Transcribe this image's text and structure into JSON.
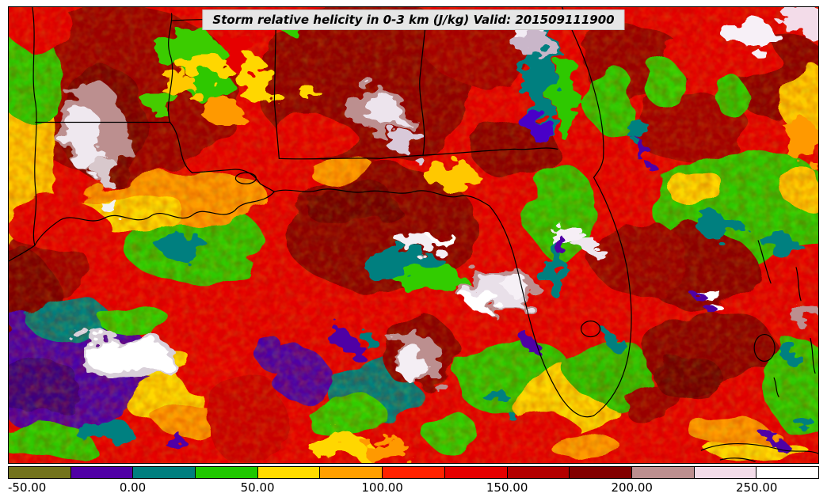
{
  "title": "Storm relative helicity in 0-3 km (J/kg) Valid: 201509111900",
  "colorbar": {
    "range": [
      -50,
      275
    ],
    "ticks": [
      "-50.00",
      "0.00",
      "50.00",
      "100.00",
      "150.00",
      "200.00",
      "250.00"
    ],
    "tick_values": [
      -50,
      0,
      50,
      100,
      150,
      200,
      250
    ],
    "segment_width_units": 25,
    "segments": [
      {
        "from": -50,
        "color": "#73731C"
      },
      {
        "from": -25,
        "color": "#5000A5"
      },
      {
        "from": 0,
        "color": "#007F7F"
      },
      {
        "from": 25,
        "color": "#1FC800"
      },
      {
        "from": 50,
        "color": "#FFDC00"
      },
      {
        "from": 75,
        "color": "#FF9F00"
      },
      {
        "from": 100,
        "color": "#FF2200"
      },
      {
        "from": 125,
        "color": "#E60000"
      },
      {
        "from": 150,
        "color": "#B40000"
      },
      {
        "from": 175,
        "color": "#820000"
      },
      {
        "from": 200,
        "color": "#BC8F8F"
      },
      {
        "from": 225,
        "color": "#F3DCE9"
      },
      {
        "from": 250,
        "color": "#FFFFFF"
      }
    ]
  }
}
